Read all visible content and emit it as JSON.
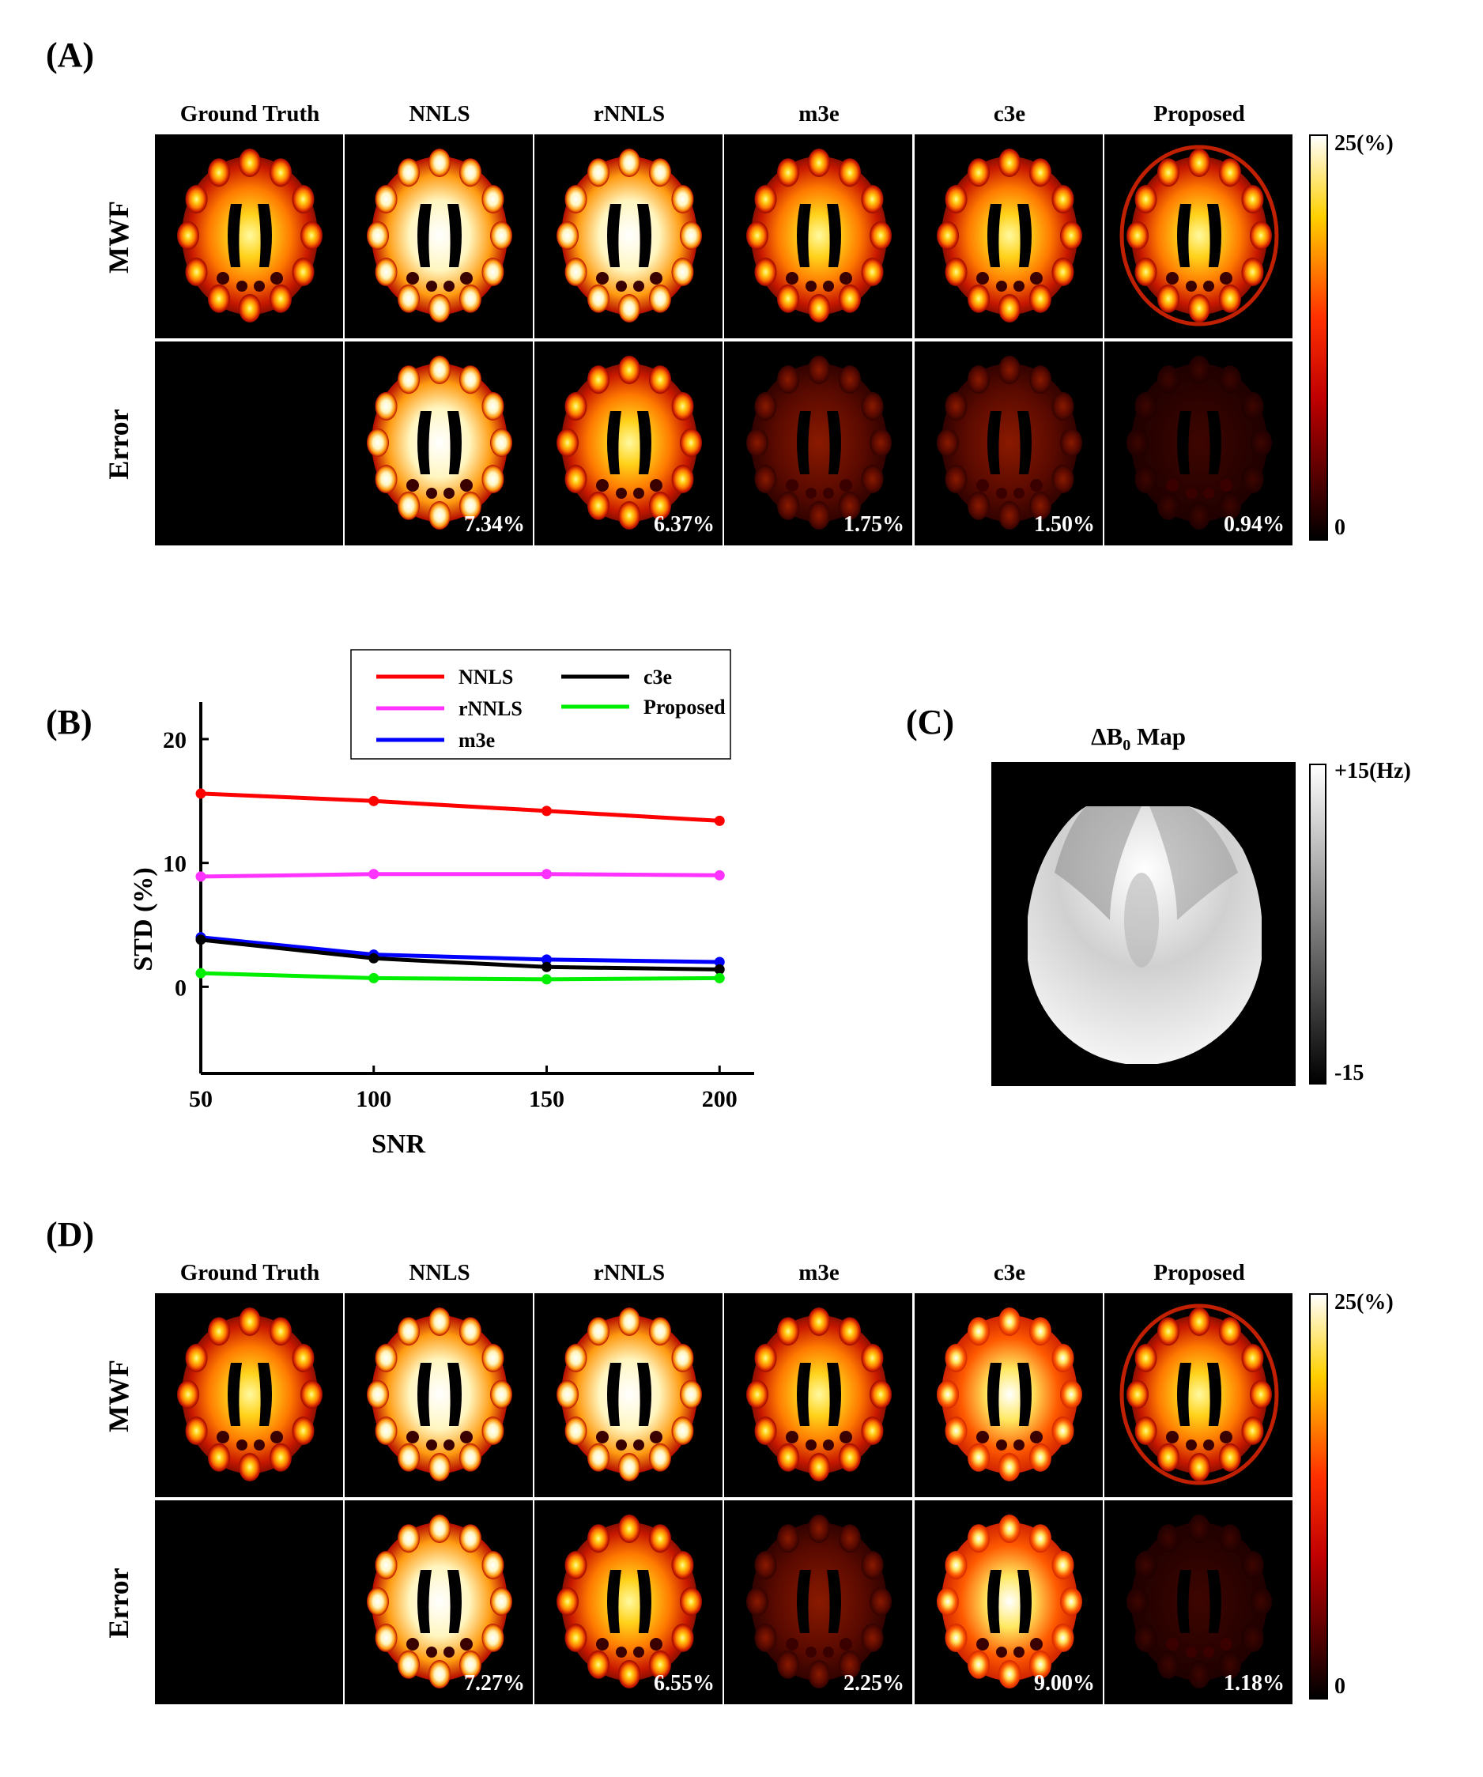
{
  "panels": {
    "a": {
      "label": "(A)",
      "errors": [
        "7.34%",
        "6.37%",
        "1.75%",
        "1.50%",
        "0.94%"
      ]
    },
    "b": {
      "label": "(B)"
    },
    "c": {
      "label": "(C)",
      "title_prefix": "ΔB",
      "title_sub": "0",
      "title_suffix": " Map",
      "cbar_max": "+15(Hz)",
      "cbar_min": "-15"
    },
    "d": {
      "label": "(D)",
      "errors": [
        "7.27%",
        "6.55%",
        "2.25%",
        "9.00%",
        "1.18%"
      ]
    }
  },
  "columns": [
    "Ground Truth",
    "NNLS",
    "rNNLS",
    "m3e",
    "c3e",
    "Proposed"
  ],
  "rows": [
    "MWF",
    "Error"
  ],
  "mwf_colorbar": {
    "max": "25(%)",
    "min": "0"
  },
  "colors": {
    "NNLS": "#ff0000",
    "rNNLS": "#ff33ff",
    "m3e": "#0000ff",
    "c3e": "#000000",
    "Proposed": "#00ee00"
  },
  "chart_data": {
    "type": "line",
    "xlabel": "SNR",
    "ylabel": "STD (%)",
    "x": [
      50,
      100,
      150,
      200
    ],
    "xticks": [
      50,
      100,
      150,
      200
    ],
    "yticks": [
      0,
      10,
      20
    ],
    "xlim": [
      50,
      210
    ],
    "ylim": [
      -7,
      23
    ],
    "legend_position": "top",
    "series": [
      {
        "name": "NNLS",
        "values": [
          15.6,
          15.0,
          14.2,
          13.4
        ]
      },
      {
        "name": "rNNLS",
        "values": [
          8.9,
          9.1,
          9.1,
          9.0
        ]
      },
      {
        "name": "m3e",
        "values": [
          4.0,
          2.6,
          2.2,
          2.0
        ]
      },
      {
        "name": "c3e",
        "values": [
          3.8,
          2.3,
          1.6,
          1.4
        ]
      },
      {
        "name": "Proposed",
        "values": [
          1.1,
          0.7,
          0.6,
          0.7
        ]
      }
    ]
  }
}
